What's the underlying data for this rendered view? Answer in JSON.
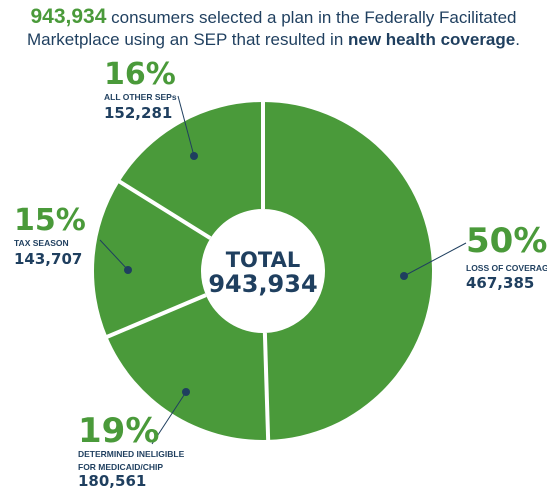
{
  "headline": {
    "count": "943,934",
    "line1_rest": " consumers selected a plan in the Federally Facilitated",
    "line2_start": "Marketplace using an SEP that resulted in ",
    "line2_bold": "new health coverage",
    "line2_end": "."
  },
  "colors": {
    "slice": "#4a9a3a",
    "dark": "#1f3f5f",
    "separator": "#ffffff"
  },
  "chart_data": {
    "type": "pie",
    "donut": true,
    "center_label": [
      "TOTAL",
      "943,934"
    ],
    "total": 943934,
    "slices": [
      {
        "name": "LOSS OF COVERAGE",
        "name_lines": [
          "LOSS OF COVERAGE"
        ],
        "percent": 50,
        "percent_label": "50%",
        "value": 467385,
        "value_label": "467,385"
      },
      {
        "name": "DETERMINED INELIGIBLE FOR MEDICAID/CHIP",
        "name_lines": [
          "DETERMINED INELIGIBLE",
          "FOR MEDICAID/CHIP"
        ],
        "percent": 19,
        "percent_label": "19%",
        "value": 180561,
        "value_label": "180,561"
      },
      {
        "name": "TAX SEASON",
        "name_lines": [
          "TAX SEASON"
        ],
        "percent": 15,
        "percent_label": "15%",
        "value": 143707,
        "value_label": "143,707"
      },
      {
        "name": "ALL OTHER SEPs",
        "name_lines": [
          "ALL OTHER SEPs"
        ],
        "percent": 16,
        "percent_label": "16%",
        "value": 152281,
        "value_label": "152,281"
      }
    ]
  }
}
